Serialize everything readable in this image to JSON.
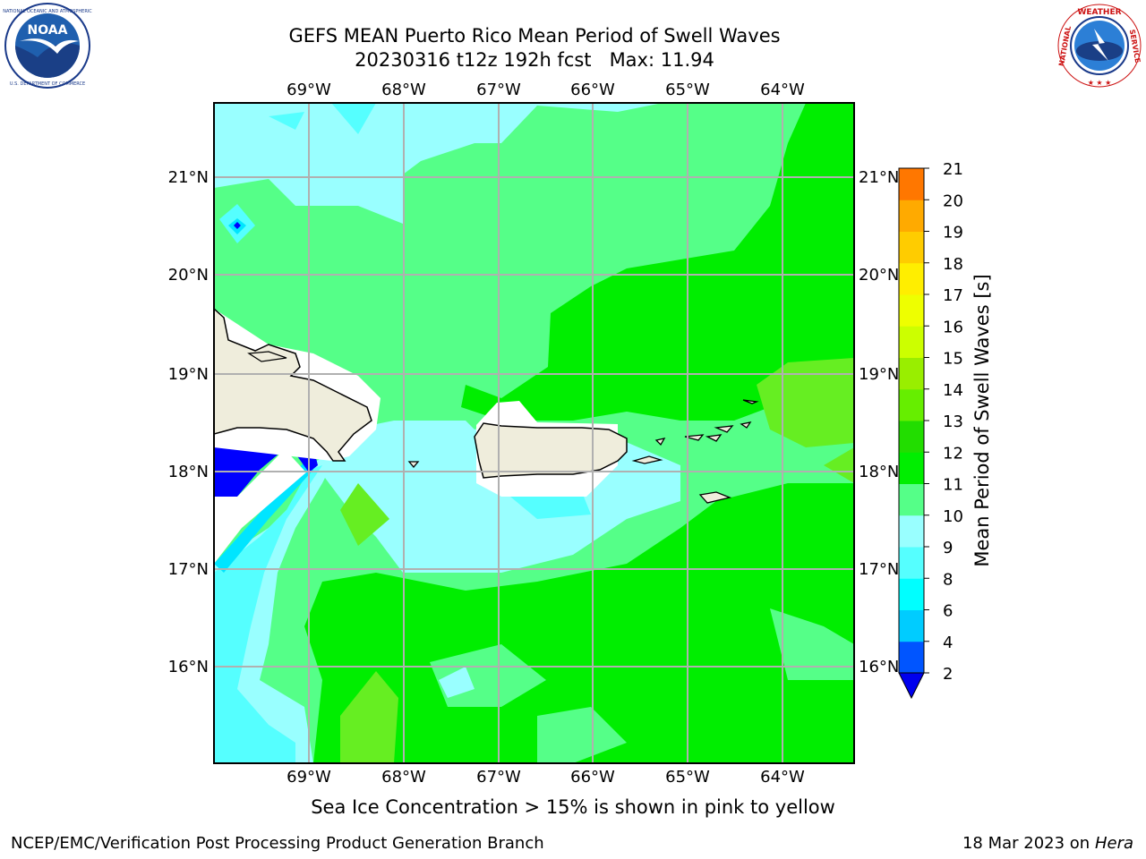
{
  "header": {
    "title_line1": "GEFS MEAN Puerto Rico Mean Period of Swell Waves",
    "title_line2": "20230316 t12z 192h fcst   Max: 11.94"
  },
  "logos": {
    "left": {
      "name": "noaa-logo",
      "text": "NOAA",
      "ring_text": "NATIONAL OCEANIC AND ATMOSPHERIC ADMINISTRATION · U.S. DEPARTMENT OF COMMERCE"
    },
    "right": {
      "name": "nws-logo",
      "ring_text": "NATIONAL WEATHER SERVICE"
    }
  },
  "map": {
    "lon_labels": [
      "69°W",
      "68°W",
      "67°W",
      "66°W",
      "65°W",
      "64°W"
    ],
    "lat_labels": [
      "21°N",
      "20°N",
      "19°N",
      "18°N",
      "17°N",
      "16°N"
    ],
    "background_class": "9-10",
    "colors": {
      "ocean_9_10": "#55ff88",
      "ocean_10_11": "#00ee00",
      "ocean_11_12": "#66ee22",
      "ocean_8_9": "#99ffff",
      "ocean_7_8": "#55ffff",
      "ocean_4_6": "#00e5ff",
      "ocean_2_4": "#0000ff",
      "land": "#efeddc",
      "gridline": "#b0b0b0"
    }
  },
  "colorbar": {
    "label": "Mean Period of Swell Waves [s]",
    "tick_labels": [
      "2",
      "4",
      "6",
      "8",
      "9",
      "10",
      "11",
      "12",
      "13",
      "14",
      "15",
      "16",
      "17",
      "18",
      "19",
      "20",
      "21"
    ],
    "bands": [
      "#0055ff",
      "#00ccff",
      "#00ffff",
      "#55ffff",
      "#99ffff",
      "#55ff88",
      "#00ee00",
      "#33dd00",
      "#99ee00",
      "#ccff00",
      "#ffff00",
      "#ffee00",
      "#ffcc00",
      "#ffaa00",
      "#ff7700",
      "#ff4400",
      "#ff1100",
      "#ff0000"
    ],
    "under_color": "#0000ee"
  },
  "caption": "Sea Ice Concentration > 15% is shown in pink to yellow",
  "footer": {
    "left": "NCEP/EMC/Verification Post Processing Product Generation Branch",
    "right_date": "18 Mar 2023 on",
    "right_host": "Hera"
  }
}
